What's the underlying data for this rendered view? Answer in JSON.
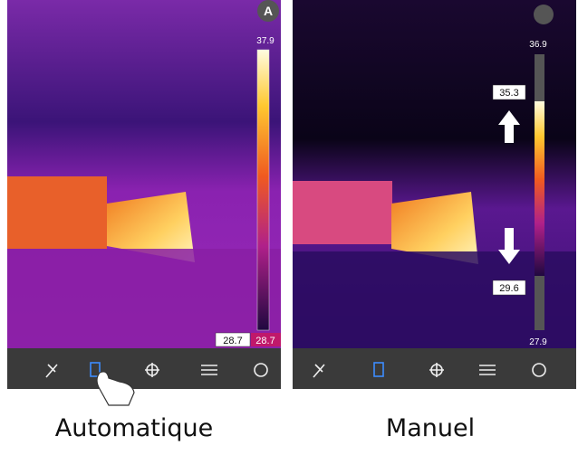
{
  "panels": [
    {
      "mode_badge": "A",
      "scale_max": "37.9",
      "scale_min_box": "28.7",
      "scale_min": "28.7",
      "caption": "Automatique"
    },
    {
      "scale_max": "36.9",
      "upper_limit": "35.3",
      "lower_limit": "29.6",
      "scale_min": "27.9",
      "caption": "Manuel"
    }
  ]
}
